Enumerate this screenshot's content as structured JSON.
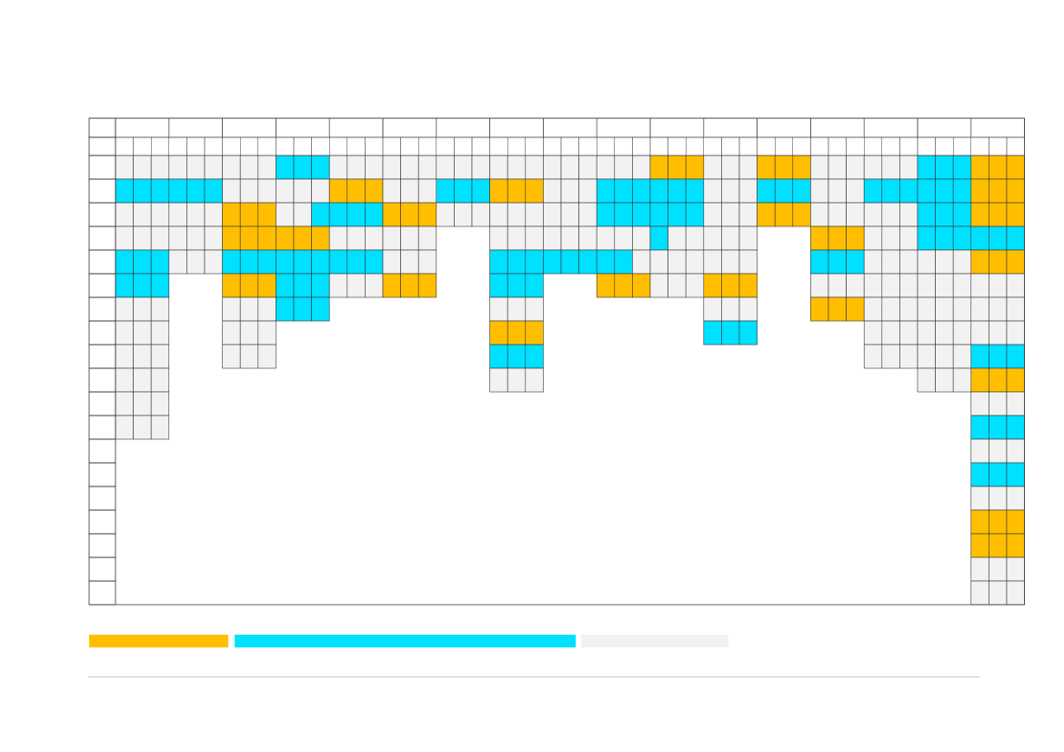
{
  "colors": {
    "orange": "#FFBF00",
    "cyan": "#00E0FF",
    "light": "#F2F2F2",
    "line": "#333333"
  },
  "legend": [
    {
      "color": "orange"
    },
    {
      "color": "cyan"
    },
    {
      "color": "light"
    }
  ],
  "chart_data": {
    "type": "heatmap",
    "group_count": 17,
    "subcolumns_per_group": 3,
    "row_count": 19,
    "columns": [
      [
        "L",
        "C",
        "L",
        "L",
        "C",
        "C",
        "L",
        "L",
        "L",
        "L",
        "L",
        "L"
      ],
      [
        "L",
        "C",
        "L",
        "L",
        "C",
        "C",
        "L",
        "L",
        "L",
        "L",
        "L",
        "L"
      ],
      [
        "L",
        "C",
        "L",
        "L",
        "C",
        "C",
        "L",
        "L",
        "L",
        "L",
        "L",
        "L"
      ],
      [
        "L",
        "C",
        "L",
        "L",
        "L"
      ],
      [
        "L",
        "C",
        "L",
        "L",
        "L"
      ],
      [
        "L",
        "C",
        "L",
        "L",
        "L"
      ],
      [
        "L",
        "L",
        "O",
        "O",
        "C",
        "O",
        "L",
        "L",
        "L"
      ],
      [
        "L",
        "L",
        "O",
        "O",
        "C",
        "O",
        "L",
        "L",
        "L"
      ],
      [
        "L",
        "L",
        "O",
        "O",
        "C",
        "O",
        "L",
        "L",
        "L"
      ],
      [
        "C",
        "L",
        "L",
        "O",
        "C",
        "C",
        "C"
      ],
      [
        "C",
        "L",
        "L",
        "O",
        "C",
        "C",
        "C"
      ],
      [
        "C",
        "L",
        "C",
        "O",
        "C",
        "C",
        "C"
      ],
      [
        "L",
        "O",
        "C",
        "L",
        "C",
        "L"
      ],
      [
        "L",
        "O",
        "C",
        "L",
        "C",
        "L"
      ],
      [
        "L",
        "O",
        "C",
        "L",
        "C",
        "L"
      ],
      [
        "L",
        "L",
        "O",
        "L",
        "L",
        "O"
      ],
      [
        "L",
        "L",
        "O",
        "L",
        "L",
        "O"
      ],
      [
        "L",
        "L",
        "O",
        "L",
        "L",
        "O"
      ],
      [
        "L",
        "C",
        "L"
      ],
      [
        "L",
        "C",
        "L"
      ],
      [
        "L",
        "C",
        "L"
      ],
      [
        "L",
        "O",
        "L",
        "L",
        "C",
        "C",
        "L",
        "O",
        "C",
        "L"
      ],
      [
        "L",
        "O",
        "L",
        "L",
        "C",
        "C",
        "L",
        "O",
        "C",
        "L"
      ],
      [
        "L",
        "O",
        "L",
        "L",
        "C",
        "C",
        "L",
        "O",
        "C",
        "L"
      ],
      [
        "L",
        "L",
        "L",
        "L",
        "C"
      ],
      [
        "L",
        "L",
        "L",
        "L",
        "C"
      ],
      [
        "L",
        "L",
        "L",
        "L",
        "C"
      ],
      [
        "L",
        "C",
        "C",
        "L",
        "C",
        "O"
      ],
      [
        "L",
        "C",
        "C",
        "L",
        "C",
        "O"
      ],
      [
        "L",
        "C",
        "C",
        "L",
        "L",
        "O"
      ],
      [
        "O",
        "C",
        "C",
        "C",
        "L",
        "L"
      ],
      [
        "O",
        "C",
        "C",
        "L",
        "L",
        "L"
      ],
      [
        "O",
        "C",
        "C",
        "L",
        "L",
        "L"
      ],
      [
        "L",
        "L",
        "L",
        "L",
        "L",
        "O",
        "L",
        "C"
      ],
      [
        "L",
        "L",
        "L",
        "L",
        "L",
        "O",
        "L",
        "C"
      ],
      [
        "L",
        "L",
        "L",
        "L",
        "L",
        "O",
        "L",
        "C"
      ],
      [
        "O",
        "C",
        "O"
      ],
      [
        "O",
        "C",
        "O"
      ],
      [
        "O",
        "C",
        "O"
      ],
      [
        "L",
        "L",
        "L",
        "O",
        "C",
        "L",
        "O"
      ],
      [
        "L",
        "L",
        "L",
        "O",
        "C",
        "L",
        "O"
      ],
      [
        "L",
        "L",
        "L",
        "O",
        "C",
        "L",
        "O"
      ],
      [
        "L",
        "C",
        "L",
        "L",
        "L",
        "L",
        "L",
        "L",
        "L"
      ],
      [
        "L",
        "C",
        "L",
        "L",
        "L",
        "L",
        "L",
        "L",
        "L"
      ],
      [
        "L",
        "C",
        "L",
        "L",
        "L",
        "L",
        "L",
        "L",
        "L"
      ],
      [
        "C",
        "C",
        "C",
        "C",
        "L",
        "L",
        "L",
        "L",
        "L",
        "L"
      ],
      [
        "C",
        "C",
        "C",
        "C",
        "L",
        "L",
        "L",
        "L",
        "L",
        "L"
      ],
      [
        "C",
        "C",
        "C",
        "C",
        "L",
        "L",
        "L",
        "L",
        "L",
        "L"
      ],
      [
        "O",
        "O",
        "O",
        "C",
        "O",
        "L",
        "L",
        "L",
        "C",
        "O",
        "L",
        "C",
        "L",
        "C",
        "L",
        "O",
        "O",
        "L",
        "L"
      ],
      [
        "O",
        "O",
        "O",
        "C",
        "O",
        "L",
        "L",
        "L",
        "C",
        "O",
        "L",
        "C",
        "L",
        "C",
        "L",
        "O",
        "O",
        "L",
        "L"
      ],
      [
        "O",
        "O",
        "O",
        "C",
        "O",
        "L",
        "L",
        "L",
        "C",
        "O",
        "L",
        "C",
        "L",
        "C",
        "L",
        "O",
        "O",
        "L",
        "L"
      ]
    ]
  }
}
